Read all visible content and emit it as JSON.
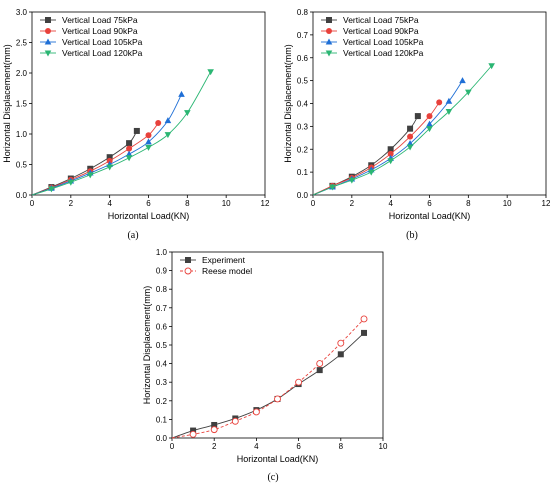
{
  "chart_data": [
    {
      "type": "line",
      "panel_label": "(a)",
      "xlabel": "Horizontal Load(KN)",
      "ylabel": "Horizontal Displacement(mm)",
      "xlim": [
        0,
        12
      ],
      "ylim": [
        0,
        3.0
      ],
      "xticks": [
        "0",
        "2",
        "4",
        "6",
        "8",
        "10",
        "12"
      ],
      "yticks": [
        "0.0",
        "0.5",
        "1.0",
        "1.5",
        "2.0",
        "2.5",
        "3.0"
      ],
      "grid": false,
      "legend_position": "top-left",
      "series": [
        {
          "name": "Vertical Load 75kPa",
          "color": "#404040",
          "marker": "square",
          "x": [
            0,
            1,
            2,
            3,
            4,
            5,
            5.4
          ],
          "y": [
            0,
            0.13,
            0.27,
            0.43,
            0.62,
            0.85,
            1.05
          ]
        },
        {
          "name": "Vertical Load 90kPa",
          "color": "#e8413b",
          "marker": "circle",
          "x": [
            0,
            1,
            2,
            3,
            4,
            5,
            6,
            6.5
          ],
          "y": [
            0,
            0.12,
            0.25,
            0.39,
            0.56,
            0.76,
            0.98,
            1.18
          ]
        },
        {
          "name": "Vertical Load 105kPa",
          "color": "#1f6fd6",
          "marker": "triangle-up",
          "x": [
            0,
            1,
            2,
            3,
            4,
            5,
            6,
            7,
            7.7
          ],
          "y": [
            0,
            0.11,
            0.23,
            0.36,
            0.5,
            0.67,
            0.87,
            1.22,
            1.65
          ]
        },
        {
          "name": "Vertical Load 120kPa",
          "color": "#2bb673",
          "marker": "triangle-down",
          "x": [
            0,
            1,
            2,
            3,
            4,
            5,
            6,
            7,
            8,
            9.2
          ],
          "y": [
            0,
            0.1,
            0.21,
            0.33,
            0.46,
            0.61,
            0.78,
            0.99,
            1.35,
            2.02
          ]
        }
      ]
    },
    {
      "type": "line",
      "panel_label": "(b)",
      "xlabel": "Horizontal Load(KN)",
      "ylabel": "Horizontal Displacement(mm)",
      "xlim": [
        0,
        12
      ],
      "ylim": [
        0,
        0.8
      ],
      "xticks": [
        "0",
        "2",
        "4",
        "6",
        "8",
        "10",
        "12"
      ],
      "yticks": [
        "0.0",
        "0.1",
        "0.2",
        "0.3",
        "0.4",
        "0.5",
        "0.6",
        "0.7",
        "0.8"
      ],
      "grid": false,
      "legend_position": "top-left",
      "series": [
        {
          "name": "Vertical Load 75kPa",
          "color": "#404040",
          "marker": "square",
          "x": [
            0,
            1,
            2,
            3,
            4,
            5,
            5.4
          ],
          "y": [
            0,
            0.04,
            0.08,
            0.13,
            0.2,
            0.29,
            0.345
          ]
        },
        {
          "name": "Vertical Load 90kPa",
          "color": "#e8413b",
          "marker": "circle",
          "x": [
            0,
            1,
            2,
            3,
            4,
            5,
            6,
            6.5
          ],
          "y": [
            0,
            0.04,
            0.075,
            0.12,
            0.18,
            0.255,
            0.345,
            0.405
          ]
        },
        {
          "name": "Vertical Load 105kPa",
          "color": "#1f6fd6",
          "marker": "triangle-up",
          "x": [
            0,
            1,
            2,
            3,
            4,
            5,
            6,
            7,
            7.7
          ],
          "y": [
            0,
            0.035,
            0.07,
            0.11,
            0.16,
            0.225,
            0.31,
            0.41,
            0.5
          ]
        },
        {
          "name": "Vertical Load 120kPa",
          "color": "#2bb673",
          "marker": "triangle-down",
          "x": [
            0,
            1,
            2,
            3,
            4,
            5,
            6,
            7,
            8,
            9.2
          ],
          "y": [
            0,
            0.035,
            0.065,
            0.1,
            0.15,
            0.21,
            0.29,
            0.365,
            0.45,
            0.565
          ]
        }
      ]
    },
    {
      "type": "line",
      "panel_label": "(c)",
      "xlabel": "Horizontal Load(KN)",
      "ylabel": "Horizontal Displacement(mm)",
      "xlim": [
        0,
        10
      ],
      "ylim": [
        0,
        1.0
      ],
      "xticks": [
        "0",
        "2",
        "4",
        "6",
        "8",
        "10"
      ],
      "yticks": [
        "0.0",
        "0.1",
        "0.2",
        "0.3",
        "0.4",
        "0.5",
        "0.6",
        "0.7",
        "0.8",
        "0.9",
        "1.0"
      ],
      "grid": false,
      "legend_position": "top-left",
      "series": [
        {
          "name": "Experiment",
          "color": "#404040",
          "marker": "square",
          "dash": false,
          "x": [
            0,
            1,
            2,
            3,
            4,
            5,
            6,
            7,
            8,
            9.1
          ],
          "y": [
            0,
            0.04,
            0.07,
            0.105,
            0.15,
            0.21,
            0.29,
            0.365,
            0.45,
            0.565
          ]
        },
        {
          "name": "Reese model",
          "color": "#e8413b",
          "marker": "open-circle",
          "dash": true,
          "x": [
            0,
            1,
            2,
            3,
            4,
            5,
            6,
            7,
            8,
            9.1
          ],
          "y": [
            0,
            0.02,
            0.045,
            0.09,
            0.14,
            0.21,
            0.3,
            0.4,
            0.51,
            0.64
          ]
        }
      ]
    }
  ]
}
